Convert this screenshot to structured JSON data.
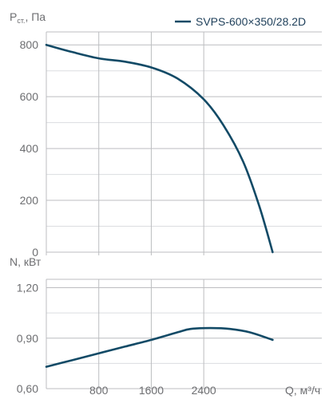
{
  "chart_data": [
    {
      "type": "line",
      "ylabel_main": "P",
      "ylabel_sub": "ст.",
      "ylabel_unit": ", Па",
      "xlim": [
        0,
        4200
      ],
      "ylim": [
        0,
        850
      ],
      "y_ticks": [
        0,
        200,
        400,
        600,
        800
      ],
      "grid": true,
      "legend_position": "top-right",
      "series": [
        {
          "name": "SVPS-600×350/28.2D",
          "color": "#124a66",
          "x": [
            0,
            400,
            800,
            1200,
            1600,
            2000,
            2400,
            2700,
            3000,
            3250,
            3450
          ],
          "y": [
            800,
            772,
            748,
            735,
            713,
            670,
            590,
            490,
            350,
            175,
            0
          ]
        }
      ]
    },
    {
      "type": "line",
      "ylabel": "N, кВт",
      "xlabel": "Q, м³/ч",
      "xlim": [
        0,
        4200
      ],
      "ylim": [
        0.6,
        1.25
      ],
      "y_ticks": [
        "0,60",
        "0,90",
        "1,20"
      ],
      "y_tick_values": [
        0.6,
        0.9,
        1.2
      ],
      "x_ticks": [
        800,
        1600,
        2400
      ],
      "grid": true,
      "series": [
        {
          "color": "#124a66",
          "x": [
            0,
            400,
            800,
            1200,
            1600,
            2000,
            2200,
            2500,
            2800,
            3100,
            3450
          ],
          "y": [
            0.73,
            0.77,
            0.81,
            0.85,
            0.89,
            0.935,
            0.955,
            0.96,
            0.955,
            0.935,
            0.89
          ]
        }
      ]
    }
  ]
}
